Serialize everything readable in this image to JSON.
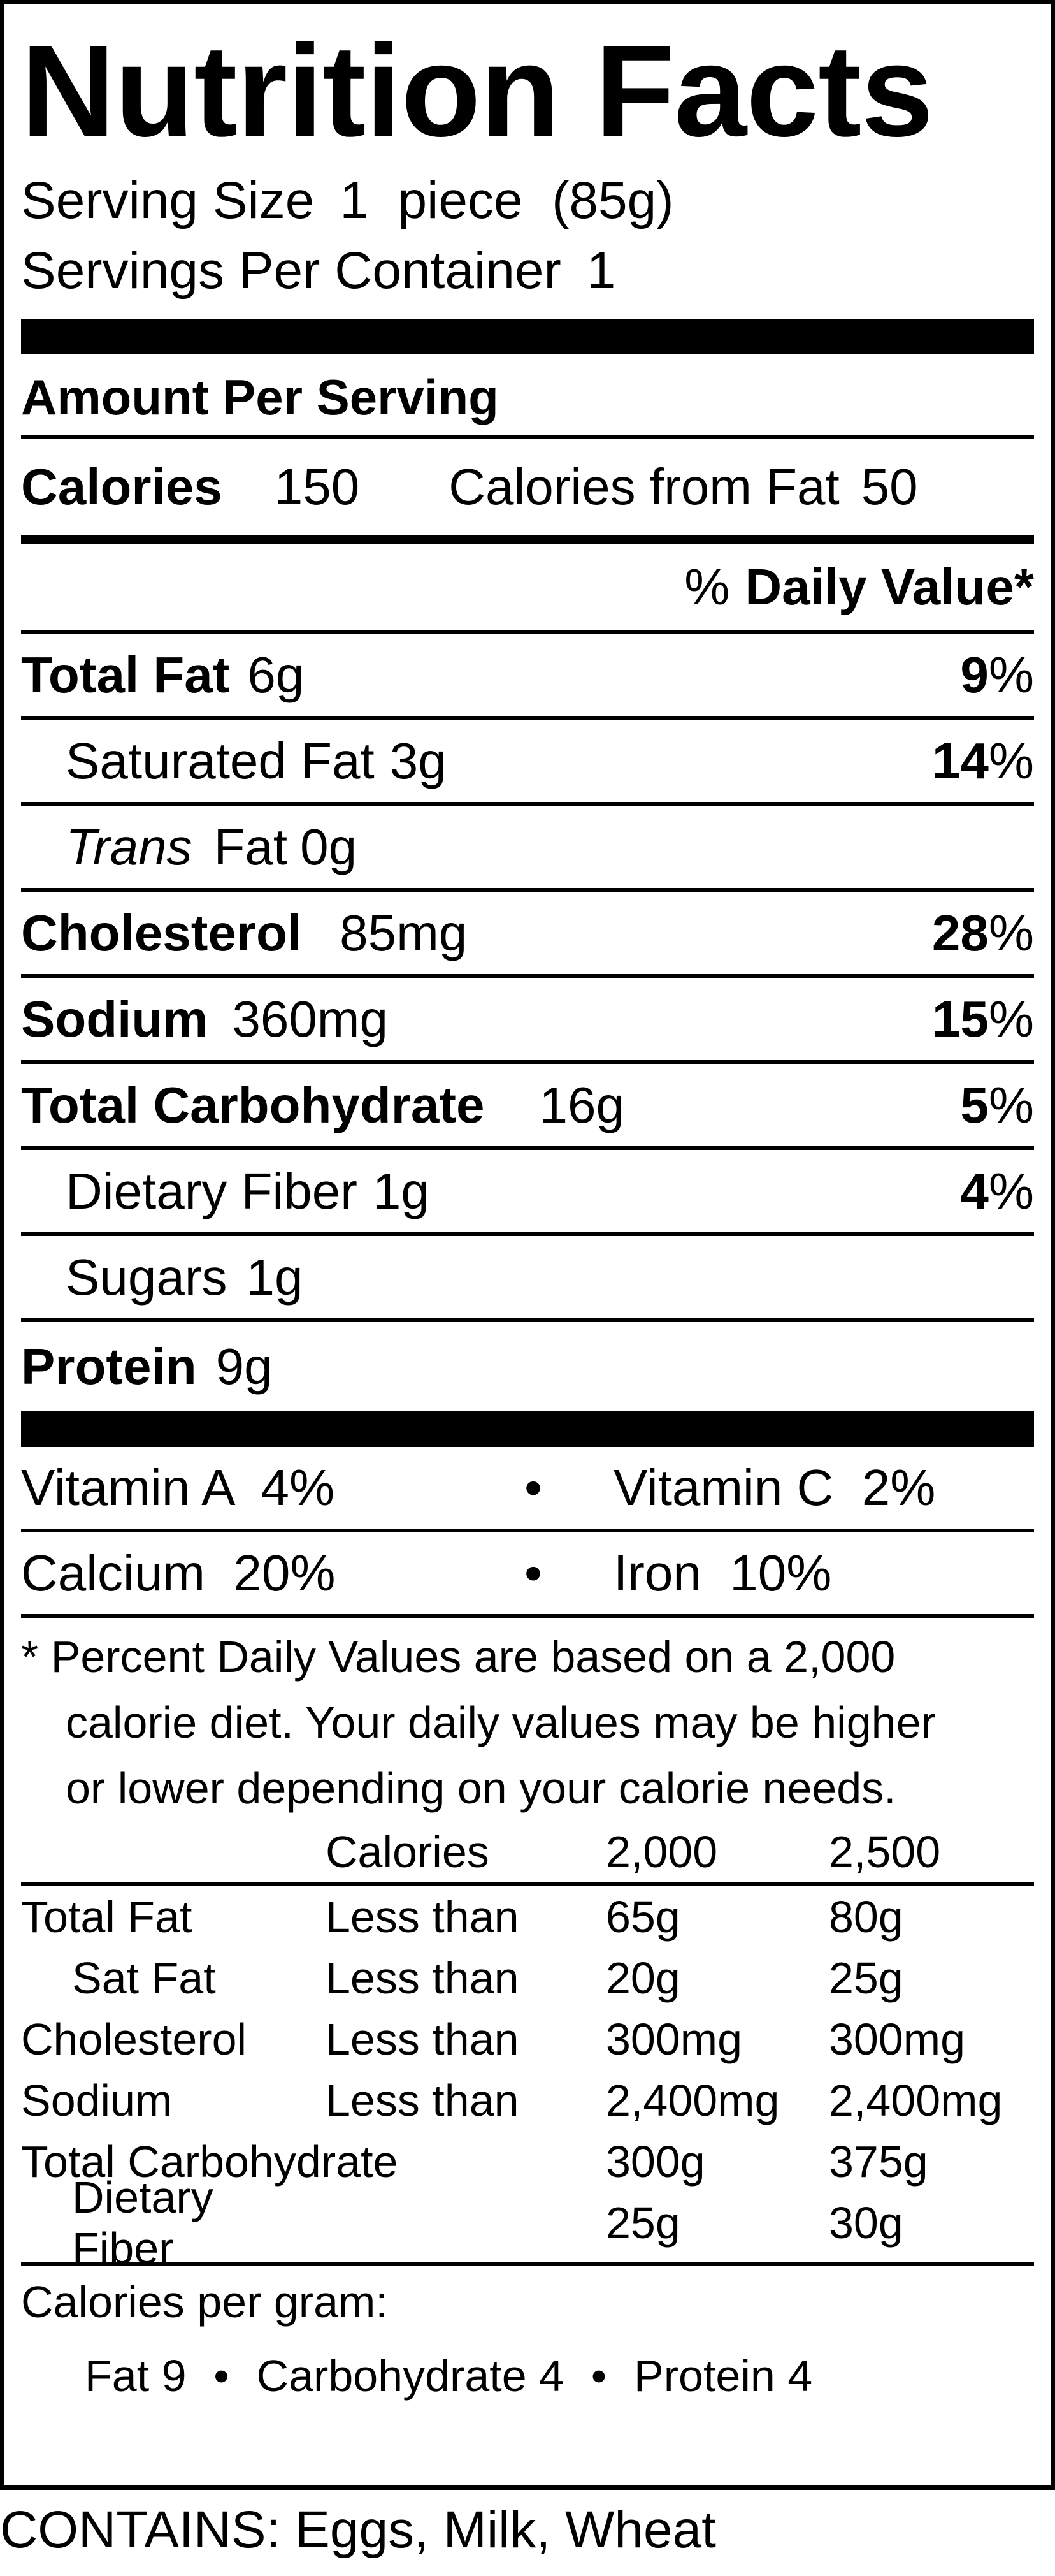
{
  "title": "Nutrition Facts",
  "serving": {
    "size_label": "Serving Size",
    "size_value": "1  piece  (85g)",
    "per_container_label": "Servings Per Container",
    "per_container_value": "1"
  },
  "amount_per_serving": "Amount Per Serving",
  "calories": {
    "label": "Calories",
    "value": "150",
    "from_fat_label": "Calories from Fat",
    "from_fat_value": "50"
  },
  "daily_value_header": {
    "percent": "%",
    "label": "Daily Value*"
  },
  "nutrients": [
    {
      "name": "Total Fat",
      "amount": "6g",
      "dv": "9",
      "unit": "%"
    },
    {
      "name": "Saturated Fat",
      "amount": "3g",
      "dv": "14",
      "unit": "%"
    },
    {
      "name": "Trans",
      "name_rest": "Fat",
      "amount": "0g"
    },
    {
      "name": "Cholesterol",
      "amount": "85mg",
      "dv": "28",
      "unit": "%"
    },
    {
      "name": "Sodium",
      "amount": "360mg",
      "dv": "15",
      "unit": "%"
    },
    {
      "name": "Total Carbohydrate",
      "amount": "16g",
      "dv": "5",
      "unit": "%"
    },
    {
      "name": "Dietary Fiber",
      "amount": "1g",
      "dv": "4",
      "unit": "%"
    },
    {
      "name": "Sugars",
      "amount": "1g"
    },
    {
      "name": "Protein",
      "amount": "9g"
    }
  ],
  "vitamins": [
    {
      "left": "Vitamin A  4%",
      "dot": "•",
      "right": "Vitamin C  2%"
    },
    {
      "left": "Calcium  20%",
      "dot": "•",
      "right": "Iron  10%"
    }
  ],
  "footnote": {
    "line1": "* Percent Daily Values are based on a 2,000",
    "line2": "calorie diet. Your daily values may be higher",
    "line3": "or lower depending on your calorie needs."
  },
  "dv_table": {
    "header": [
      "",
      "Calories",
      "2,000",
      "2,500"
    ],
    "rows": [
      [
        "Total Fat",
        "Less than",
        "65g",
        "80g"
      ],
      [
        "Sat Fat",
        "Less than",
        "20g",
        "25g"
      ],
      [
        "Cholesterol",
        "Less than",
        "300mg",
        "300mg"
      ],
      [
        "Sodium",
        "Less than",
        "2,400mg",
        "2,400mg"
      ],
      [
        "Total Carbohydrate",
        "",
        "300g",
        "375g"
      ],
      [
        "Dietary Fiber",
        "",
        "25g",
        "30g"
      ]
    ]
  },
  "calories_per_gram": {
    "label": "Calories per gram:",
    "fat": "Fat 9",
    "carbohydrate": "Carbohydrate 4",
    "protein": "Protein 4",
    "dot": "•"
  },
  "contains": "CONTAINS: Eggs, Milk, Wheat"
}
